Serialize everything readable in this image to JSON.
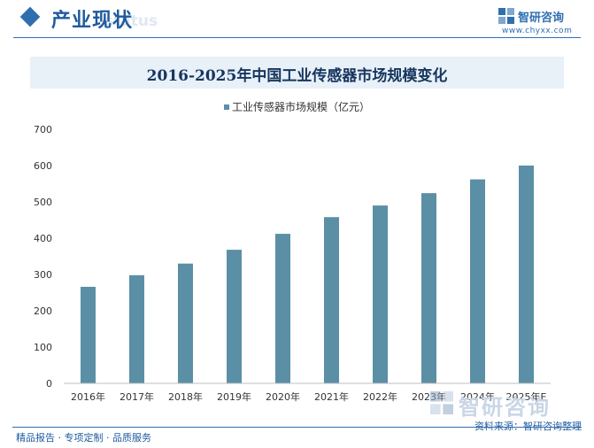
{
  "header": {
    "section_title": "产业现状",
    "ghost_text": "status",
    "brand_name": "智研咨询",
    "brand_url": "www.chyxx.com"
  },
  "chart_data": {
    "type": "bar",
    "title": "2016-2025年中国工业传感器市场规模变化",
    "categories": [
      "2016年",
      "2017年",
      "2018年",
      "2019年",
      "2020年",
      "2021年",
      "2022年",
      "2023年",
      "2024年",
      "2025年E"
    ],
    "series": [
      {
        "name": "工业传感器市场规模（亿元）",
        "values": [
          266,
          298,
          330,
          368,
          412,
          458,
          490,
          524,
          562,
          600
        ]
      }
    ],
    "ylim": [
      0,
      700
    ],
    "yticks": [
      0,
      100,
      200,
      300,
      400,
      500,
      600,
      700
    ],
    "legend_position": "top-center",
    "grid": false,
    "bar_color": "#5b8fa6"
  },
  "watermark_brand": "智研咨询",
  "footer": {
    "slogan": "精品报告 · 专项定制 · 品质服务",
    "source": "资料来源：智研咨询整理"
  }
}
